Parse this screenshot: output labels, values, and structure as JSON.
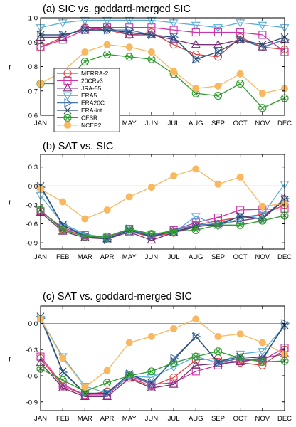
{
  "chart_data": [
    {
      "type": "line",
      "title": "(a) SIC vs. goddard-merged SIC",
      "ylabel": "r",
      "categories": [
        "JAN",
        "FEB",
        "MAR",
        "APR",
        "MAY",
        "JUN",
        "JUL",
        "AUG",
        "SEP",
        "OCT",
        "NOV",
        "DEC"
      ],
      "ylim": [
        0.6,
        1.0
      ],
      "yticks": [
        "0.6",
        "0.7",
        "0.8",
        "0.9",
        "1.0"
      ],
      "yticks_values": [
        0.6,
        0.7,
        0.8,
        0.9,
        1.0
      ],
      "zero_line": false,
      "series": [
        {
          "name": "MERRA-2",
          "color": "#e04040",
          "marker": "circle",
          "values": [
            0.88,
            0.92,
            0.96,
            0.95,
            0.93,
            0.94,
            0.89,
            0.85,
            0.84,
            0.92,
            0.88,
            0.87
          ]
        },
        {
          "name": "20CRv3",
          "color": "#cc33aa",
          "marker": "square",
          "values": [
            0.88,
            0.91,
            0.95,
            0.96,
            0.96,
            0.96,
            0.95,
            0.94,
            0.94,
            0.94,
            0.93,
            0.86
          ]
        },
        {
          "name": "JRA-55",
          "color": "#7b2f7b",
          "marker": "triangle-up",
          "values": [
            0.92,
            0.92,
            0.96,
            0.96,
            0.93,
            0.93,
            0.91,
            0.89,
            0.89,
            0.91,
            0.88,
            0.91
          ]
        },
        {
          "name": "ERA5",
          "color": "#5aaedc",
          "marker": "triangle-down",
          "values": [
            0.96,
            0.98,
            0.99,
            0.99,
            0.99,
            0.99,
            0.98,
            0.97,
            0.96,
            0.98,
            0.97,
            0.96
          ]
        },
        {
          "name": "ERA20C",
          "color": "#4a78b5",
          "marker": "triangle-right",
          "values": [
            0.93,
            0.93,
            0.95,
            0.95,
            0.95,
            0.93,
            0.92,
            0.83,
            0.86,
            0.91,
            0.88,
            0.91
          ]
        },
        {
          "name": "ERA-int",
          "color": "#2b4d73",
          "marker": "x",
          "values": [
            0.93,
            0.93,
            0.95,
            0.95,
            0.94,
            0.93,
            0.92,
            0.83,
            0.86,
            0.91,
            0.89,
            0.92
          ]
        },
        {
          "name": "CFSR",
          "color": "#2e9c2e",
          "marker": "circle-x",
          "values": [
            0.73,
            0.73,
            0.82,
            0.85,
            0.84,
            0.83,
            0.77,
            0.69,
            0.68,
            0.73,
            0.63,
            0.67
          ]
        },
        {
          "name": "NCEP2",
          "color": "#f9b860",
          "marker": "dot",
          "values": [
            0.73,
            0.78,
            0.86,
            0.89,
            0.88,
            0.86,
            0.78,
            0.71,
            0.72,
            0.77,
            0.69,
            0.71
          ]
        }
      ]
    },
    {
      "type": "line",
      "title": "(b) SAT vs. SIC",
      "ylabel": "r",
      "categories": [
        "JAN",
        "FEB",
        "MAR",
        "APR",
        "MAY",
        "JUN",
        "JUL",
        "AUG",
        "SEP",
        "OCT",
        "NOV",
        "DEC"
      ],
      "ylim": [
        -1.0,
        0.5
      ],
      "yticks": [
        "-0.9",
        "-0.6",
        "-0.3",
        "0.0",
        "0.3"
      ],
      "yticks_values": [
        -0.9,
        -0.6,
        -0.3,
        0.0,
        0.3
      ],
      "zero_line": true,
      "series": [
        {
          "name": "MERRA-2",
          "color": "#e04040",
          "marker": "circle",
          "values": [
            -0.4,
            -0.68,
            -0.8,
            -0.83,
            -0.72,
            -0.81,
            -0.74,
            -0.62,
            -0.55,
            -0.5,
            -0.45,
            -0.3
          ]
        },
        {
          "name": "20CRv3",
          "color": "#cc33aa",
          "marker": "square",
          "values": [
            -0.4,
            -0.66,
            -0.78,
            -0.82,
            -0.68,
            -0.78,
            -0.7,
            -0.58,
            -0.5,
            -0.38,
            -0.37,
            -0.36
          ]
        },
        {
          "name": "JRA-55",
          "color": "#7b2f7b",
          "marker": "triangle-up",
          "values": [
            -0.42,
            -0.72,
            -0.82,
            -0.84,
            -0.73,
            -0.86,
            -0.74,
            -0.65,
            -0.6,
            -0.55,
            -0.5,
            -0.2
          ]
        },
        {
          "name": "ERA5",
          "color": "#5aaedc",
          "marker": "triangle-down",
          "values": [
            -0.15,
            -0.6,
            -0.76,
            -0.82,
            -0.72,
            -0.76,
            -0.74,
            -0.48,
            -0.63,
            -0.52,
            -0.46,
            0.03
          ]
        },
        {
          "name": "ERA20C",
          "color": "#4a78b5",
          "marker": "triangle-right",
          "values": [
            -0.02,
            -0.62,
            -0.78,
            -0.85,
            -0.68,
            -0.79,
            -0.7,
            -0.62,
            -0.6,
            -0.48,
            -0.53,
            -0.2
          ]
        },
        {
          "name": "ERA-int",
          "color": "#2b4d73",
          "marker": "x",
          "values": [
            0.0,
            -0.62,
            -0.8,
            -0.84,
            -0.7,
            -0.8,
            -0.72,
            -0.64,
            -0.62,
            -0.48,
            -0.52,
            -0.22
          ]
        },
        {
          "name": "CFSR",
          "color": "#2e9c2e",
          "marker": "circle-x",
          "values": [
            -0.38,
            -0.7,
            -0.8,
            -0.8,
            -0.68,
            -0.76,
            -0.72,
            -0.7,
            -0.62,
            -0.62,
            -0.55,
            -0.47
          ]
        },
        {
          "name": "NCEP2",
          "color": "#f9b860",
          "marker": "dot",
          "values": [
            -0.05,
            -0.25,
            -0.52,
            -0.38,
            -0.17,
            -0.02,
            0.16,
            0.27,
            0.03,
            0.14,
            -0.32,
            -0.28
          ]
        }
      ]
    },
    {
      "type": "line",
      "title": "(c) SAT vs. goddard-merged SIC",
      "ylabel": "r",
      "categories": [
        "JAN",
        "FEB",
        "MAR",
        "APR",
        "MAY",
        "JUN",
        "JUL",
        "AUG",
        "SEP",
        "OCT",
        "NOV",
        "DEC"
      ],
      "ylim": [
        -1.0,
        0.2
      ],
      "yticks": [
        "-0.9",
        "-0.6",
        "-0.3",
        "0.0"
      ],
      "yticks_values": [
        -0.9,
        -0.6,
        -0.3,
        0.0
      ],
      "zero_line": true,
      "series": [
        {
          "name": "MERRA-2",
          "color": "#e04040",
          "marker": "circle",
          "values": [
            -0.4,
            -0.72,
            -0.82,
            -0.78,
            -0.62,
            -0.72,
            -0.62,
            -0.42,
            -0.4,
            -0.45,
            -0.48,
            -0.3
          ]
        },
        {
          "name": "20CRv3",
          "color": "#cc33aa",
          "marker": "square",
          "values": [
            -0.38,
            -0.7,
            -0.82,
            -0.82,
            -0.6,
            -0.7,
            -0.68,
            -0.55,
            -0.48,
            -0.42,
            -0.42,
            -0.28
          ]
        },
        {
          "name": "JRA-55",
          "color": "#7b2f7b",
          "marker": "triangle-up",
          "values": [
            -0.45,
            -0.74,
            -0.84,
            -0.84,
            -0.63,
            -0.74,
            -0.7,
            -0.48,
            -0.46,
            -0.44,
            -0.4,
            -0.35
          ]
        },
        {
          "name": "ERA5",
          "color": "#5aaedc",
          "marker": "triangle-down",
          "values": [
            0.05,
            -0.38,
            -0.72,
            -0.8,
            -0.6,
            -0.62,
            -0.5,
            -0.38,
            -0.45,
            -0.35,
            -0.32,
            -0.03
          ]
        },
        {
          "name": "ERA20C",
          "color": "#4a78b5",
          "marker": "triangle-right",
          "values": [
            0.06,
            -0.56,
            -0.8,
            -0.8,
            -0.58,
            -0.7,
            -0.4,
            -0.15,
            -0.45,
            -0.4,
            -0.42,
            0.0
          ]
        },
        {
          "name": "ERA-int",
          "color": "#2b4d73",
          "marker": "x",
          "values": [
            0.08,
            -0.55,
            -0.8,
            -0.8,
            -0.58,
            -0.68,
            -0.42,
            -0.15,
            -0.44,
            -0.38,
            -0.4,
            -0.02
          ]
        },
        {
          "name": "CFSR",
          "color": "#2e9c2e",
          "marker": "circle-x",
          "values": [
            -0.52,
            -0.65,
            -0.78,
            -0.68,
            -0.6,
            -0.55,
            -0.45,
            -0.38,
            -0.32,
            -0.4,
            -0.44,
            -0.43
          ]
        },
        {
          "name": "NCEP2",
          "color": "#f9b860",
          "marker": "dot",
          "values": [
            0.05,
            -0.4,
            -0.73,
            -0.54,
            -0.22,
            -0.15,
            -0.06,
            0.05,
            -0.15,
            -0.12,
            -0.22,
            -0.35
          ]
        }
      ]
    }
  ]
}
